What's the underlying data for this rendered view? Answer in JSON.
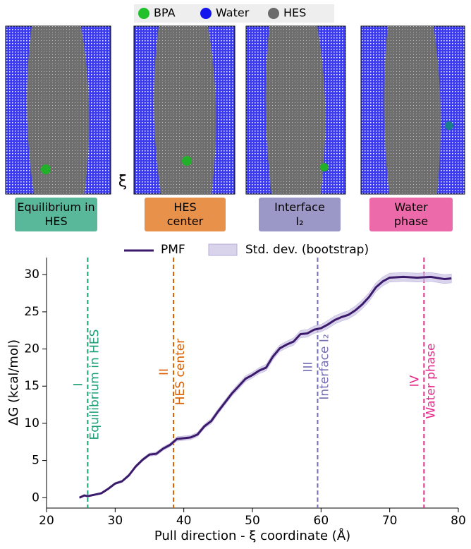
{
  "image_legend": [
    {
      "label": "BPA",
      "color": "#22c02a"
    },
    {
      "label": "Water",
      "color": "#1515ee"
    },
    {
      "label": "HES",
      "color": "#6b6b6b"
    }
  ],
  "panels": [
    {
      "label": "Equilibrium in HES",
      "color": "#5ab89a"
    },
    {
      "label": "HES center",
      "color": "#e8914a"
    },
    {
      "label": "Interface I₂",
      "color": "#9b97c6"
    },
    {
      "label": "Water phase",
      "color": "#ec6aa9"
    }
  ],
  "axis_symbol": "ξ",
  "chart_data": {
    "type": "line",
    "x": [
      24.8,
      25.5,
      26,
      27,
      28,
      29,
      30,
      31,
      32,
      33,
      34,
      35,
      36,
      37,
      38,
      39,
      40,
      41,
      42,
      43,
      44,
      45,
      46,
      47,
      48,
      49,
      50,
      51,
      52,
      53,
      54,
      55,
      56,
      57,
      58,
      59,
      60,
      61,
      62,
      63,
      64,
      65,
      66,
      67,
      68,
      69,
      70,
      72,
      74,
      76,
      78,
      79
    ],
    "series": [
      {
        "name": "PMF",
        "color": "#3b1a6b",
        "values": [
          0,
          0.3,
          0.2,
          0.4,
          0.6,
          1.2,
          1.9,
          2.2,
          3.0,
          4.2,
          5.1,
          5.8,
          5.9,
          6.6,
          7.1,
          7.9,
          8.0,
          8.1,
          8.5,
          9.6,
          10.3,
          11.6,
          12.8,
          14.0,
          15.0,
          16.0,
          16.5,
          17.1,
          17.5,
          19.0,
          20.1,
          20.6,
          21.0,
          22.0,
          22.1,
          22.6,
          22.8,
          23.3,
          23.9,
          24.3,
          24.6,
          25.2,
          26.0,
          27.0,
          28.3,
          29.1,
          29.6,
          29.7,
          29.6,
          29.7,
          29.4,
          29.5
        ]
      },
      {
        "name": "Std. dev. (bootstrap)",
        "color": "#c9c0e4",
        "values": [
          0.1,
          0.1,
          0.1,
          0.1,
          0.1,
          0.15,
          0.15,
          0.15,
          0.2,
          0.2,
          0.2,
          0.2,
          0.25,
          0.25,
          0.25,
          0.3,
          0.3,
          0.3,
          0.3,
          0.3,
          0.35,
          0.35,
          0.35,
          0.35,
          0.4,
          0.4,
          0.4,
          0.4,
          0.45,
          0.45,
          0.45,
          0.45,
          0.5,
          0.5,
          0.5,
          0.5,
          0.5,
          0.55,
          0.55,
          0.55,
          0.55,
          0.6,
          0.6,
          0.6,
          0.6,
          0.6,
          0.6,
          0.6,
          0.6,
          0.6,
          0.6,
          0.6
        ]
      }
    ],
    "xlabel": "Pull direction - ξ coordinate (Å)",
    "ylabel": "ΔG (kcal/mol)",
    "xlim": [
      20,
      80
    ],
    "ylim": [
      -1.4,
      32.3
    ],
    "xticks": [
      20,
      30,
      40,
      50,
      60,
      70,
      80
    ],
    "yticks": [
      0,
      5,
      10,
      15,
      20,
      25,
      30
    ],
    "annotations": [
      {
        "x": 26,
        "numeral": "I",
        "label": "Equilibrium in HES",
        "color": "#1b9e77"
      },
      {
        "x": 38.5,
        "numeral": "II",
        "label": "HES center",
        "color": "#d95f02"
      },
      {
        "x": 59.5,
        "numeral": "III",
        "label": "Interface I₂",
        "color": "#7570b3"
      },
      {
        "x": 75,
        "numeral": "IV",
        "label": "Water phase",
        "color": "#e7298a"
      }
    ]
  }
}
